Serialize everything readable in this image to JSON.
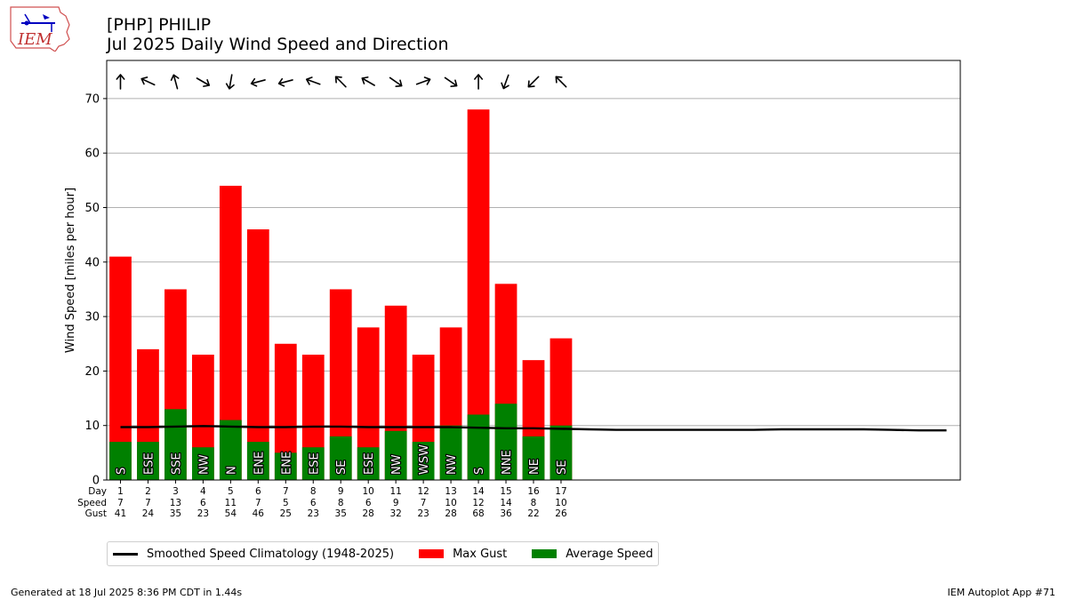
{
  "header": {
    "title_line1": "[PHP] PHILIP",
    "title_line2": "Jul 2025 Daily Wind Speed and Direction"
  },
  "logo": {
    "text": "IEM"
  },
  "footer": {
    "left": "Generated at 18 Jul 2025 8:36 PM CDT in 1.44s",
    "right": "IEM Autoplot App #71"
  },
  "colors": {
    "gust": "#ff0000",
    "average": "#008000",
    "climatology": "#000000",
    "grid": "#b0b0b0"
  },
  "legend": {
    "climatology": "Smoothed Speed Climatology (1948-2025)",
    "gust": "Max Gust",
    "average": "Average Speed"
  },
  "chart_data": {
    "type": "bar",
    "ylabel": "Wind Speed [miles per hour]",
    "ylim": [
      0,
      77
    ],
    "yticks": [
      0,
      10,
      20,
      30,
      40,
      50,
      60,
      70
    ],
    "xlim": [
      0.5,
      31.5
    ],
    "grid": "horizontal",
    "legend_position": "bottom-left",
    "row_labels": [
      "Day",
      "Speed",
      "Gust"
    ],
    "days": [
      1,
      2,
      3,
      4,
      5,
      6,
      7,
      8,
      9,
      10,
      11,
      12,
      13,
      14,
      15,
      16,
      17
    ],
    "average_speed": [
      7,
      7,
      13,
      6,
      11,
      7,
      5,
      6,
      8,
      6,
      9,
      7,
      10,
      12,
      14,
      8,
      10
    ],
    "max_gust": [
      41,
      24,
      35,
      23,
      54,
      46,
      25,
      23,
      35,
      28,
      32,
      23,
      28,
      68,
      36,
      22,
      26
    ],
    "direction": [
      "S",
      "ESE",
      "SSE",
      "NW",
      "N",
      "ENE",
      "ENE",
      "ESE",
      "SE",
      "ESE",
      "NW",
      "WSW",
      "NW",
      "S",
      "NNE",
      "NE",
      "SE"
    ],
    "arrow_angles": [
      0,
      -65,
      -15,
      120,
      190,
      255,
      255,
      -70,
      -45,
      -60,
      125,
      70,
      125,
      0,
      200,
      225,
      -45
    ],
    "climatology": {
      "x": [
        1,
        2,
        3,
        4,
        5,
        6,
        7,
        8,
        9,
        10,
        11,
        12,
        13,
        14,
        15,
        16,
        17,
        18,
        19,
        20,
        21,
        22,
        23,
        24,
        25,
        26,
        27,
        28,
        29,
        30,
        31
      ],
      "y": [
        9.7,
        9.7,
        9.8,
        9.9,
        9.8,
        9.7,
        9.7,
        9.8,
        9.8,
        9.7,
        9.7,
        9.7,
        9.7,
        9.6,
        9.5,
        9.5,
        9.4,
        9.3,
        9.2,
        9.2,
        9.2,
        9.2,
        9.2,
        9.2,
        9.3,
        9.3,
        9.3,
        9.3,
        9.2,
        9.1,
        9.1
      ]
    }
  }
}
